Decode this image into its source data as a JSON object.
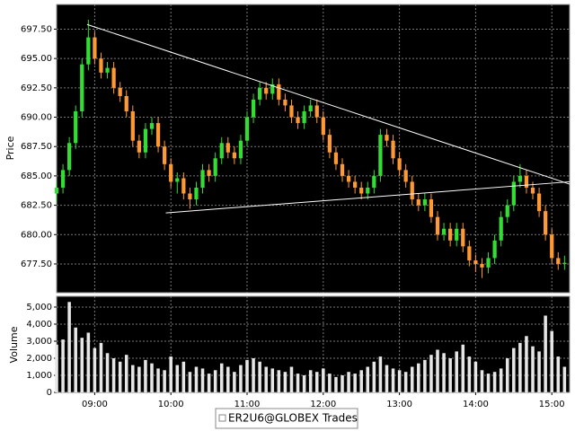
{
  "chart_data": [
    {
      "type": "candlestick",
      "y_label": "Price",
      "name": "ER2U6@GLOBEX Trades",
      "up_color": "#33dd33",
      "down_color": "#ff9933",
      "grid": true,
      "xlim": [
        510,
        914
      ],
      "ylim": [
        675.05,
        699.6
      ],
      "yticks": [
        {
          "value": 677.5,
          "label": "677.50"
        },
        {
          "value": 680,
          "label": "680.00"
        },
        {
          "value": 682.5,
          "label": "682.50"
        },
        {
          "value": 685,
          "label": "685.00"
        },
        {
          "value": 687.5,
          "label": "687.50"
        },
        {
          "value": 690,
          "label": "690.00"
        },
        {
          "value": 692.5,
          "label": "692.50"
        },
        {
          "value": 695,
          "label": "695.00"
        },
        {
          "value": 697.5,
          "label": "697.50"
        }
      ],
      "x": [
        510,
        515,
        520,
        525,
        530,
        535,
        540,
        545,
        550,
        555,
        560,
        565,
        570,
        575,
        580,
        585,
        590,
        595,
        600,
        605,
        610,
        615,
        620,
        625,
        630,
        635,
        640,
        645,
        650,
        655,
        660,
        665,
        670,
        675,
        680,
        685,
        690,
        695,
        700,
        705,
        710,
        715,
        720,
        725,
        730,
        735,
        740,
        745,
        750,
        755,
        760,
        765,
        770,
        775,
        780,
        785,
        790,
        795,
        800,
        805,
        810,
        815,
        820,
        825,
        830,
        835,
        840,
        845,
        850,
        855,
        860,
        865,
        870,
        875,
        880,
        885,
        890,
        895,
        900,
        905,
        910
      ],
      "open": [
        683.5,
        684.0,
        685.5,
        687.8,
        690.5,
        694.5,
        696.8,
        695.0,
        693.8,
        694.2,
        692.5,
        691.8,
        690.5,
        688.0,
        687.0,
        689.0,
        689.5,
        687.5,
        686.0,
        684.5,
        684.8,
        683.5,
        683.0,
        684.0,
        685.5,
        685.0,
        686.5,
        687.8,
        687.0,
        686.5,
        688.0,
        690.0,
        691.5,
        692.5,
        692.0,
        692.8,
        691.5,
        691.0,
        690.0,
        689.5,
        690.5,
        691.0,
        690.0,
        688.5,
        687.0,
        686.0,
        685.0,
        684.5,
        684.0,
        683.5,
        684.0,
        685.0,
        688.5,
        688.0,
        686.5,
        685.5,
        684.5,
        683.0,
        682.5,
        683.0,
        681.5,
        680.0,
        680.5,
        679.5,
        680.5,
        679.0,
        677.8,
        677.5,
        677.2,
        678.0,
        679.5,
        681.5,
        682.5,
        684.5,
        685.0,
        684.0,
        683.5,
        682.0,
        680.0,
        678.0,
        677.5
      ],
      "high": [
        684.5,
        686.0,
        688.3,
        691.0,
        695.0,
        698.3,
        697.3,
        695.5,
        694.7,
        694.7,
        693.0,
        692.3,
        691.0,
        688.5,
        689.5,
        690.0,
        690.0,
        688.0,
        686.5,
        685.3,
        685.3,
        684.0,
        684.5,
        686.0,
        686.0,
        687.0,
        688.3,
        688.3,
        687.5,
        688.5,
        690.5,
        692.0,
        693.0,
        693.0,
        693.3,
        693.3,
        692.0,
        691.5,
        690.5,
        691.0,
        691.5,
        691.5,
        690.5,
        689.0,
        687.5,
        686.5,
        685.5,
        685.0,
        684.5,
        684.5,
        685.5,
        689.0,
        689.0,
        688.5,
        687.0,
        686.0,
        685.0,
        683.5,
        683.5,
        683.5,
        682.0,
        681.0,
        681.0,
        681.0,
        681.0,
        679.5,
        678.3,
        678.0,
        678.5,
        680.0,
        682.0,
        683.0,
        685.0,
        686.0,
        685.5,
        684.5,
        684.0,
        682.5,
        680.5,
        678.5,
        678.2
      ],
      "low": [
        682.8,
        683.5,
        685.0,
        687.3,
        690.0,
        694.0,
        694.5,
        693.3,
        693.3,
        692.0,
        691.3,
        690.0,
        687.5,
        686.5,
        686.5,
        688.5,
        687.0,
        685.5,
        684.0,
        683.5,
        683.0,
        682.2,
        682.5,
        683.5,
        684.5,
        684.5,
        686.0,
        686.5,
        686.0,
        686.0,
        687.5,
        689.5,
        691.0,
        691.5,
        691.5,
        691.0,
        690.5,
        689.5,
        689.0,
        689.0,
        690.0,
        689.5,
        688.0,
        686.5,
        685.5,
        684.5,
        684.0,
        683.5,
        683.0,
        683.0,
        683.5,
        684.5,
        687.5,
        686.0,
        685.0,
        684.0,
        682.5,
        682.0,
        682.0,
        681.0,
        679.5,
        679.5,
        679.0,
        679.0,
        678.5,
        677.3,
        676.8,
        676.3,
        676.7,
        677.5,
        679.0,
        681.0,
        682.0,
        684.0,
        683.5,
        683.0,
        681.5,
        679.5,
        677.5,
        677.0,
        677.0
      ],
      "close": [
        684.0,
        685.5,
        687.8,
        690.5,
        694.5,
        696.8,
        695.0,
        693.8,
        694.2,
        692.5,
        691.8,
        690.5,
        688.0,
        687.0,
        689.0,
        689.5,
        687.5,
        686.0,
        684.5,
        684.8,
        683.5,
        683.0,
        684.0,
        685.5,
        685.0,
        686.5,
        687.8,
        687.0,
        686.5,
        688.0,
        690.0,
        691.5,
        692.5,
        692.0,
        692.8,
        691.5,
        691.0,
        690.0,
        689.5,
        690.5,
        691.0,
        690.0,
        688.5,
        687.0,
        686.0,
        685.0,
        684.5,
        684.0,
        683.5,
        684.0,
        685.0,
        688.5,
        688.0,
        686.5,
        685.5,
        684.5,
        683.0,
        682.5,
        683.0,
        681.5,
        680.0,
        680.5,
        679.5,
        680.5,
        679.0,
        677.8,
        677.5,
        677.2,
        678.0,
        679.5,
        681.5,
        682.5,
        684.5,
        685.0,
        684.0,
        683.5,
        682.0,
        680.0,
        678.0,
        677.5,
        677.6
      ],
      "trendlines": [
        {
          "x": [
            534,
            914
          ],
          "y": [
            697.9,
            684.3
          ]
        },
        {
          "x": [
            596,
            914
          ],
          "y": [
            681.85,
            684.5
          ]
        }
      ],
      "trendline_color": "#ffffff"
    },
    {
      "type": "bar",
      "y_label": "Volume",
      "color": "#e6e6e6",
      "grid": true,
      "xlim": [
        510,
        914
      ],
      "ylim": [
        0,
        5630
      ],
      "xticks": [
        {
          "value": 540,
          "label": "09:00"
        },
        {
          "value": 600,
          "label": "10:00"
        },
        {
          "value": 660,
          "label": "11:00"
        },
        {
          "value": 720,
          "label": "12:00"
        },
        {
          "value": 780,
          "label": "13:00"
        },
        {
          "value": 840,
          "label": "14:00"
        },
        {
          "value": 900,
          "label": "15:00"
        }
      ],
      "yticks": [
        0,
        {
          "value": 1000,
          "label": "1,000"
        },
        {
          "value": 2000,
          "label": "2,000"
        },
        {
          "value": 3000,
          "label": "3,000"
        },
        {
          "value": 4000,
          "label": "4,000"
        },
        {
          "value": 5000,
          "label": "5,000"
        }
      ],
      "x": [
        510,
        515,
        520,
        525,
        530,
        535,
        540,
        545,
        550,
        555,
        560,
        565,
        570,
        575,
        580,
        585,
        590,
        595,
        600,
        605,
        610,
        615,
        620,
        625,
        630,
        635,
        640,
        645,
        650,
        655,
        660,
        665,
        670,
        675,
        680,
        685,
        690,
        695,
        700,
        705,
        710,
        715,
        720,
        725,
        730,
        735,
        740,
        745,
        750,
        755,
        760,
        765,
        770,
        775,
        780,
        785,
        790,
        795,
        800,
        805,
        810,
        815,
        820,
        825,
        830,
        835,
        840,
        845,
        850,
        855,
        860,
        865,
        870,
        875,
        880,
        885,
        890,
        895,
        900,
        905,
        910
      ],
      "values": [
        2800,
        3100,
        5300,
        3800,
        3200,
        3500,
        2600,
        2900,
        2300,
        2000,
        1800,
        2200,
        1600,
        1500,
        1900,
        1700,
        1400,
        1300,
        2100,
        1600,
        1800,
        1200,
        1500,
        1400,
        1100,
        1300,
        1700,
        1500,
        1200,
        1600,
        1900,
        2000,
        1800,
        1500,
        1400,
        1300,
        1200,
        1500,
        1100,
        1000,
        1300,
        1200,
        1400,
        1100,
        900,
        1000,
        1200,
        1100,
        1300,
        1500,
        1800,
        2100,
        1600,
        1400,
        1300,
        1200,
        1500,
        1700,
        1900,
        2200,
        2500,
        2300,
        2000,
        2400,
        2800,
        2100,
        1800,
        1300,
        1100,
        1200,
        1400,
        2000,
        2600,
        2900,
        3300,
        2700,
        2400,
        4500,
        3600,
        2100,
        1500
      ]
    }
  ]
}
